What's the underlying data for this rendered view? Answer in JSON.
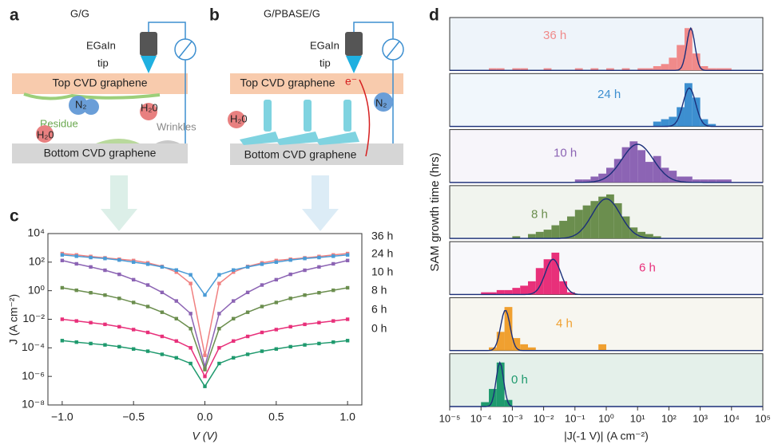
{
  "panel_labels": [
    "a",
    "b",
    "c",
    "d"
  ],
  "diagram_a": {
    "title": "G/G",
    "tip_1": "EGaIn",
    "tip_2": "tip",
    "top": "Top CVD graphene",
    "n2": "N₂",
    "h2o_1": "H₂0",
    "residue": "Residue",
    "wrinkles": "Wrinkles",
    "h2o_2": "H₂0",
    "bottom": "Bottom CVD graphene"
  },
  "diagram_b": {
    "title": "G/PBASE/G",
    "tip_1": "EGaIn",
    "tip_2": "tip",
    "top": "Top CVD graphene",
    "electron": "e⁻",
    "h2o": "H₂0",
    "n2": "N₂",
    "bottom": "Bottom CVD graphene"
  },
  "chart_data": [
    {
      "type": "line",
      "x_label": "V (V)",
      "y_label": "J (A cm⁻²)",
      "yscale": "log",
      "xlim": [
        -1.1,
        1.1
      ],
      "ylim": [
        1e-08,
        10000
      ],
      "xticks": [
        {
          "value": -1,
          "label": "−1.0"
        },
        {
          "value": -0.5,
          "label": "−0.5"
        },
        {
          "value": 0,
          "label": "0.0"
        },
        {
          "value": 0.5,
          "label": "0.5"
        },
        {
          "value": 1,
          "label": "1.0"
        }
      ],
      "yticks": [
        {
          "value": 10000,
          "label": "10⁴"
        },
        {
          "value": 100,
          "label": "10²"
        },
        {
          "value": 1,
          "label": "10⁰"
        },
        {
          "value": 0.01,
          "label": "10⁻²"
        },
        {
          "value": 0.0001,
          "label": "10⁻⁴"
        },
        {
          "value": 1e-06,
          "label": "10⁻⁶"
        },
        {
          "value": 1e-08,
          "label": "10⁻⁸"
        }
      ],
      "x": [
        -1,
        -0.9,
        -0.8,
        -0.7,
        -0.6,
        -0.5,
        -0.4,
        -0.3,
        -0.2,
        -0.1,
        0,
        0.1,
        0.2,
        0.3,
        0.4,
        0.5,
        0.6,
        0.7,
        0.8,
        0.9,
        1
      ],
      "series": [
        {
          "name": "36 h",
          "color": "#f08080",
          "values": [
            400,
            320,
            250,
            200,
            160,
            130,
            89,
            50,
            20,
            3.2,
            3e-05,
            3.2,
            20,
            50,
            89,
            130,
            160,
            200,
            250,
            320,
            400
          ]
        },
        {
          "name": "24 h",
          "color": "#4a9bd6",
          "values": [
            320,
            260,
            210,
            180,
            140,
            100,
            72,
            46,
            28,
            13,
            0.5,
            13,
            28,
            46,
            72,
            100,
            140,
            180,
            210,
            260,
            320
          ]
        },
        {
          "name": "10 h",
          "color": "#8c64b4",
          "values": [
            130,
            76,
            46,
            27,
            14,
            5.9,
            2.5,
            0.76,
            0.19,
            0.025,
            5e-06,
            0.025,
            0.19,
            0.76,
            2.5,
            5.9,
            14,
            27,
            46,
            76,
            130
          ]
        },
        {
          "name": "8 h",
          "color": "#6b8e4e",
          "values": [
            1.6,
            1.07,
            0.72,
            0.49,
            0.29,
            0.15,
            0.078,
            0.031,
            0.011,
            0.0022,
            3e-06,
            0.0022,
            0.011,
            0.031,
            0.078,
            0.15,
            0.29,
            0.49,
            0.72,
            1.07,
            1.6
          ]
        },
        {
          "name": "6 h",
          "color": "#e8307a",
          "values": [
            0.01,
            0.0076,
            0.0058,
            0.0044,
            0.003,
            0.0019,
            0.0012,
            0.00063,
            0.0003,
            0.0001,
            1e-06,
            0.0001,
            0.0003,
            0.00063,
            0.0012,
            0.0019,
            0.003,
            0.0044,
            0.0058,
            0.0076,
            0.01
          ]
        },
        {
          "name": "0 h",
          "color": "#1f9a6e",
          "values": [
            0.00032,
            0.00025,
            0.0002,
            0.00016,
            0.00012,
            8.3e-05,
            5.8e-05,
            3.5e-05,
            2e-05,
            8e-06,
            2e-07,
            8e-06,
            2e-05,
            3.5e-05,
            5.8e-05,
            8.3e-05,
            0.00012,
            0.00016,
            0.0002,
            0.00025,
            0.00032
          ]
        }
      ]
    },
    {
      "type": "histogram",
      "x_label": "|J(-1 V)| (A cm⁻²)",
      "y_label": "SAM growth time (hrs)",
      "xscale": "log",
      "xlim": [
        1e-05,
        100000
      ],
      "xticks": [
        {
          "value": 1e-05,
          "label": "10⁻⁵"
        },
        {
          "value": 0.0001,
          "label": "10⁻⁴"
        },
        {
          "value": 0.001,
          "label": "10⁻³"
        },
        {
          "value": 0.01,
          "label": "10⁻²"
        },
        {
          "value": 0.1,
          "label": "10⁻¹"
        },
        {
          "value": 1,
          "label": "10⁰"
        },
        {
          "value": 10,
          "label": "10¹"
        },
        {
          "value": 100,
          "label": "10²"
        },
        {
          "value": 1000,
          "label": "10³"
        },
        {
          "value": 10000,
          "label": "10⁴"
        },
        {
          "value": 100000,
          "label": "10⁵"
        }
      ],
      "fit_color": "#1b2f7a",
      "series": [
        {
          "name": "36 h",
          "color": "#f08a8a",
          "background": "#eef4fa",
          "ylim": [
            0,
            25
          ],
          "bins": [
            0.0001,
            0.000178,
            0.000316,
            0.000562,
            0.001,
            0.00178,
            0.00316,
            0.00562,
            0.01,
            0.0178,
            0.0316,
            0.0562,
            0.1,
            0.178,
            0.316,
            0.562,
            1,
            1.78,
            3.16,
            5.62,
            10,
            17.8,
            31.6,
            56.2,
            100,
            178,
            316,
            562,
            1000,
            1780,
            3160,
            5620,
            10000
          ],
          "counts": [
            0,
            1,
            1,
            0,
            1,
            1,
            0,
            0,
            1,
            0,
            0,
            0,
            1,
            0,
            1,
            0,
            1,
            0,
            1,
            0,
            1,
            1,
            2,
            3,
            6,
            12,
            20,
            8,
            2,
            1,
            1,
            1
          ],
          "fit": {
            "center": 500,
            "sigma_decades": 0.13,
            "peak": 20
          }
        },
        {
          "name": "24 h",
          "color": "#3d8fd0",
          "background": "#f1f7fc",
          "ylim": [
            0,
            22
          ],
          "bins": [
            10,
            17.8,
            31.6,
            56.2,
            100,
            178,
            316,
            562,
            1000,
            1780,
            3160,
            5620,
            10000
          ],
          "counts": [
            0,
            0,
            2,
            3,
            4,
            8,
            18,
            12,
            3,
            1,
            0,
            0
          ],
          "fit": {
            "center": 450,
            "sigma_decades": 0.2,
            "peak": 16
          }
        },
        {
          "name": "10 h",
          "color": "#8c64b4",
          "background": "#f7f5fa",
          "ylim": [
            0,
            18
          ],
          "bins": [
            0.01,
            0.0178,
            0.0316,
            0.0562,
            0.1,
            0.178,
            0.316,
            0.562,
            1,
            1.78,
            3.16,
            5.62,
            10,
            17.8,
            31.6,
            56.2,
            100,
            178,
            316,
            562,
            1000,
            1780,
            3160,
            5620,
            10000
          ],
          "counts": [
            0,
            0,
            0,
            0,
            1,
            1,
            2,
            3,
            5,
            8,
            12,
            14,
            11,
            7,
            9,
            5,
            4,
            2,
            2,
            1,
            1,
            1,
            1,
            1
          ],
          "fit": {
            "center": 10,
            "sigma_decades": 0.5,
            "peak": 13
          }
        },
        {
          "name": "8 h",
          "color": "#6b8e4e",
          "background": "#f1f4ee",
          "ylim": [
            0,
            24
          ],
          "bins": [
            0.001,
            0.00178,
            0.00316,
            0.00562,
            0.01,
            0.0178,
            0.0316,
            0.0562,
            0.1,
            0.178,
            0.316,
            0.562,
            1,
            1.78,
            3.16,
            5.62,
            10,
            17.8,
            31.6,
            56.2,
            100
          ],
          "counts": [
            1,
            0,
            2,
            3,
            4,
            6,
            8,
            10,
            13,
            15,
            17,
            19,
            20,
            16,
            10,
            5,
            3,
            2,
            1,
            0
          ],
          "fit": {
            "center": 1,
            "sigma_decades": 0.45,
            "peak": 18
          }
        },
        {
          "name": "6 h",
          "color": "#e8307a",
          "background": "#f8f8fb",
          "ylim": [
            0,
            24
          ],
          "bins": [
            0.0001,
            0.000178,
            0.000316,
            0.000562,
            0.001,
            0.00178,
            0.00316,
            0.00562,
            0.01,
            0.0178,
            0.0316,
            0.0562,
            0.1
          ],
          "counts": [
            1,
            1,
            2,
            2,
            3,
            4,
            6,
            12,
            16,
            19,
            6,
            1
          ],
          "fit": {
            "center": 0.02,
            "sigma_decades": 0.25,
            "peak": 16
          }
        },
        {
          "name": "4 h",
          "color": "#f0a030",
          "background": "#f7f6f0",
          "ylim": [
            0,
            17
          ],
          "bins": [
            0.0001,
            0.000178,
            0.000316,
            0.000562,
            0.001,
            0.00178,
            0.00316,
            0.00562,
            0.01,
            0.0178,
            0.0316,
            0.0562,
            0.1,
            0.178,
            0.316,
            0.562,
            1
          ],
          "counts": [
            0,
            1,
            6,
            14,
            4,
            2,
            1,
            0,
            0,
            0,
            0,
            0,
            0,
            0,
            0,
            2
          ],
          "fit": {
            "center": 0.0006,
            "sigma_decades": 0.15,
            "peak": 13
          }
        },
        {
          "name": "0 h",
          "color": "#1f9a6e",
          "background": "#e4f0ea",
          "ylim": [
            0,
            24
          ],
          "bins": [
            0.0001,
            0.000178,
            0.000316,
            0.000562,
            0.001
          ],
          "counts": [
            2,
            8,
            20,
            3
          ],
          "fit": {
            "center": 0.0004,
            "sigma_decades": 0.12,
            "peak": 20
          }
        }
      ]
    }
  ]
}
